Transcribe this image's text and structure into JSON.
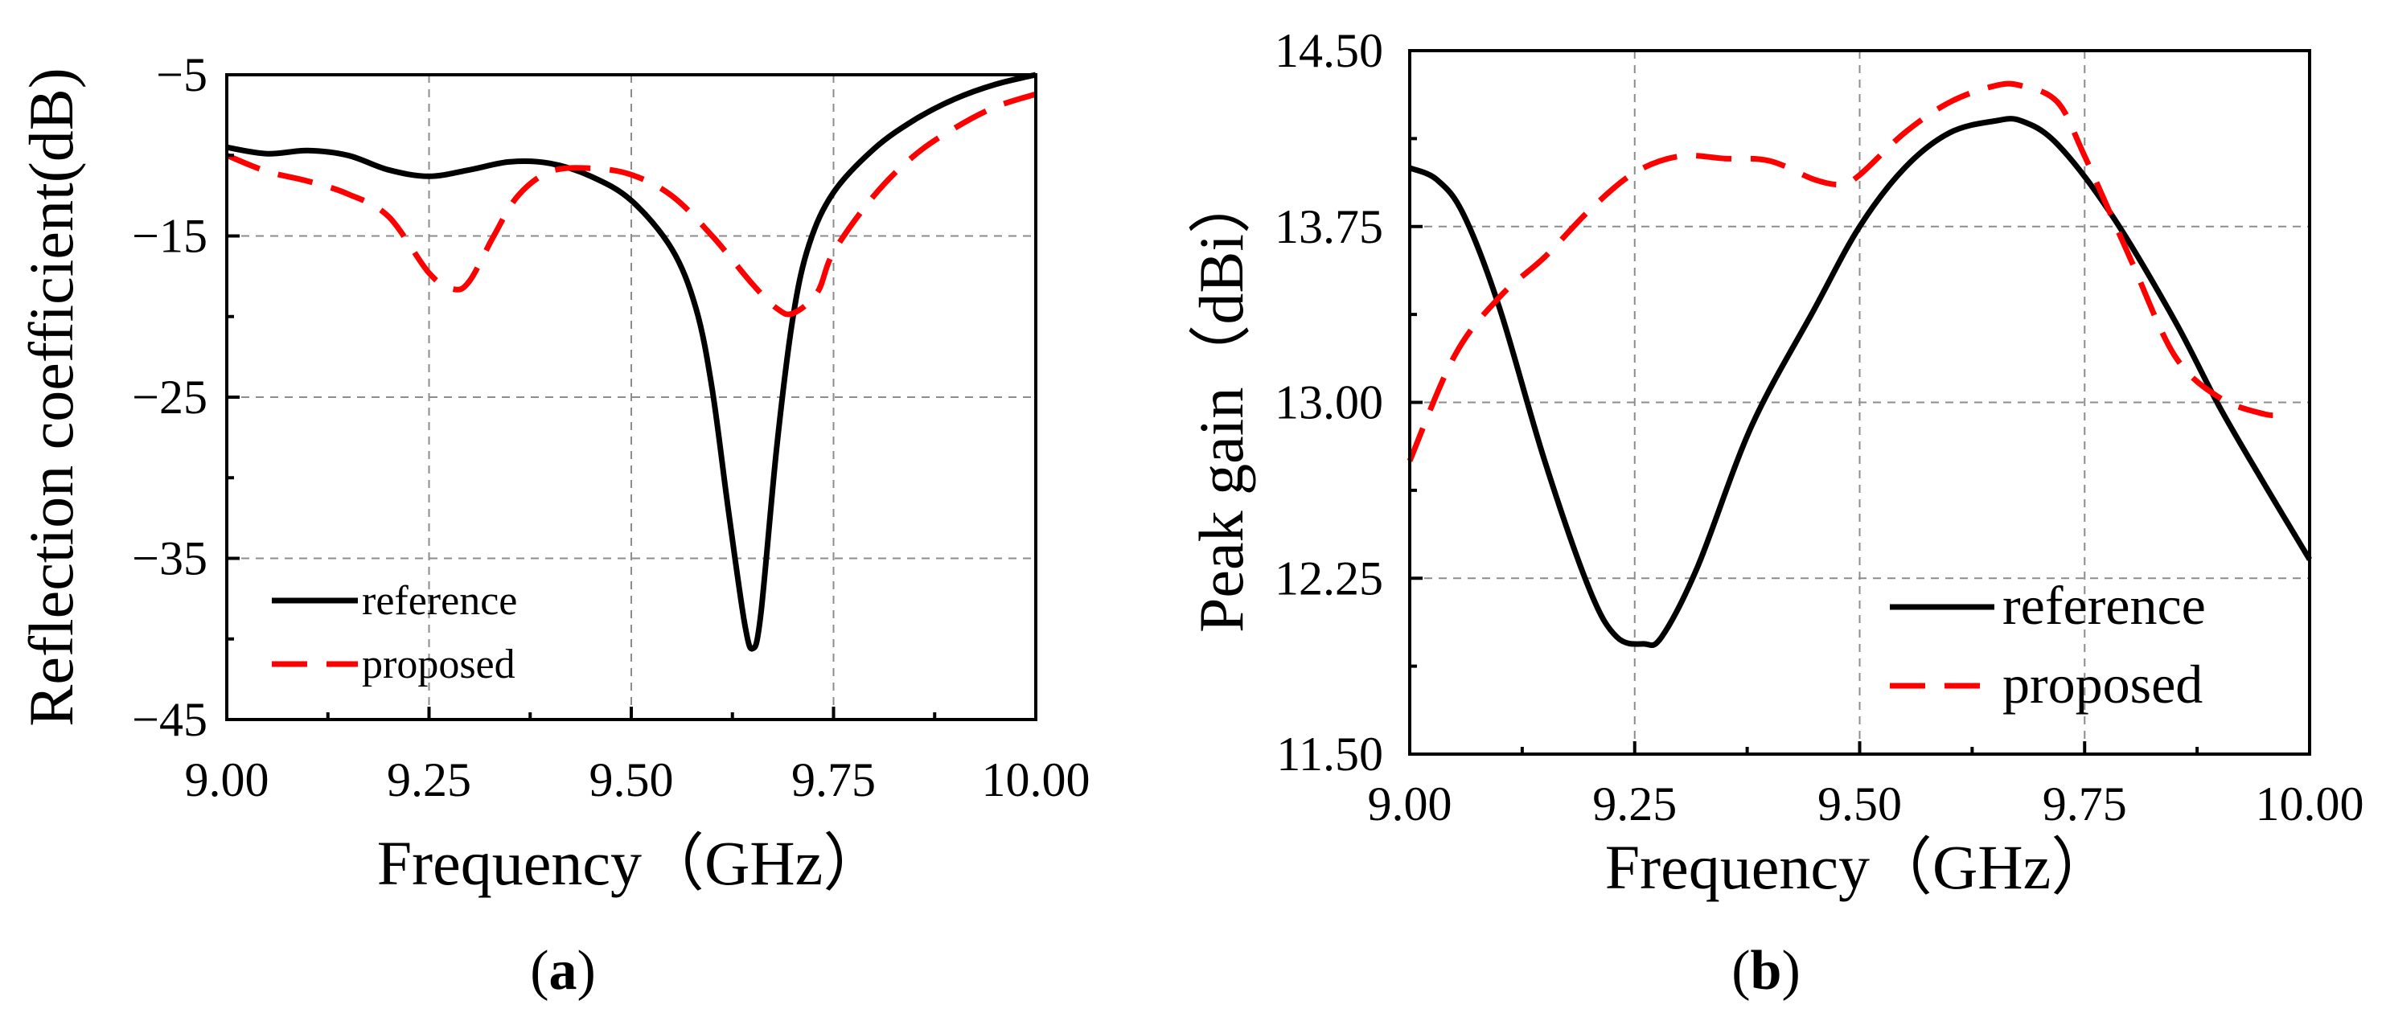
{
  "colors": {
    "reference": "#000000",
    "proposed": "#ff0000",
    "grid": "#8c8c8c"
  },
  "chart_data": [
    {
      "id": "a",
      "type": "line",
      "panel_label": "a",
      "xlabel": "Frequency（GHz）",
      "ylabel": "Reflection coefficient(dB)",
      "xlim": [
        9.0,
        10.0
      ],
      "ylim": [
        -45,
        -5
      ],
      "xticks": [
        9.0,
        9.25,
        9.5,
        9.75,
        10.0
      ],
      "xtick_labels": [
        "9.00",
        "9.25",
        "9.50",
        "9.75",
        "10.00"
      ],
      "yticks": [
        -45,
        -35,
        -25,
        -15,
        -5
      ],
      "ytick_labels": [
        "−45",
        "−35",
        "−25",
        "−15",
        "−5"
      ],
      "grid": true,
      "legend_position": "bottom-left",
      "series": [
        {
          "name": "reference",
          "style": "solid",
          "x": [
            9.0,
            9.05,
            9.1,
            9.15,
            9.2,
            9.25,
            9.3,
            9.35,
            9.4,
            9.45,
            9.5,
            9.55,
            9.58,
            9.6,
            9.62,
            9.64,
            9.65,
            9.66,
            9.68,
            9.7,
            9.72,
            9.75,
            9.8,
            9.85,
            9.9,
            9.95,
            10.0
          ],
          "y": [
            -9.5,
            -9.9,
            -9.7,
            -10.0,
            -10.9,
            -11.3,
            -10.9,
            -10.4,
            -10.5,
            -11.3,
            -12.8,
            -15.8,
            -19.5,
            -24.5,
            -32.0,
            -39.0,
            -40.6,
            -38.5,
            -28.0,
            -20.0,
            -15.5,
            -12.3,
            -9.6,
            -7.8,
            -6.5,
            -5.6,
            -5.0
          ]
        },
        {
          "name": "proposed",
          "style": "dashed",
          "x": [
            9.0,
            9.05,
            9.1,
            9.15,
            9.2,
            9.25,
            9.28,
            9.3,
            9.33,
            9.36,
            9.4,
            9.45,
            9.5,
            9.55,
            9.6,
            9.65,
            9.68,
            9.7,
            9.73,
            9.75,
            9.8,
            9.85,
            9.9,
            9.95,
            10.0
          ],
          "y": [
            -10.0,
            -11.0,
            -11.6,
            -12.4,
            -13.8,
            -17.3,
            -18.3,
            -17.8,
            -15.0,
            -12.5,
            -11.0,
            -10.8,
            -11.2,
            -12.5,
            -15.0,
            -18.0,
            -19.5,
            -19.8,
            -18.5,
            -16.0,
            -12.5,
            -10.0,
            -8.3,
            -7.0,
            -6.2
          ]
        }
      ]
    },
    {
      "id": "b",
      "type": "line",
      "panel_label": "b",
      "xlabel": "Frequency（GHz）",
      "ylabel": "Peak gain（dBi）",
      "xlim": [
        9.0,
        10.0
      ],
      "ylim": [
        11.5,
        14.5
      ],
      "xticks": [
        9.0,
        9.25,
        9.5,
        9.75,
        10.0
      ],
      "xtick_labels": [
        "9.00",
        "9.25",
        "9.50",
        "9.75",
        "10.00"
      ],
      "yticks": [
        11.5,
        12.25,
        13.0,
        13.75,
        14.5
      ],
      "ytick_labels": [
        "11.50",
        "12.25",
        "13.00",
        "13.75",
        "14.50"
      ],
      "grid": true,
      "legend_position": "bottom-right",
      "series": [
        {
          "name": "reference",
          "style": "solid",
          "x": [
            9.0,
            9.03,
            9.06,
            9.1,
            9.15,
            9.2,
            9.23,
            9.26,
            9.28,
            9.32,
            9.38,
            9.45,
            9.5,
            9.55,
            9.6,
            9.65,
            9.68,
            9.72,
            9.78,
            9.85,
            9.9,
            9.95,
            10.0
          ],
          "y": [
            14.0,
            13.95,
            13.8,
            13.4,
            12.75,
            12.2,
            12.0,
            11.97,
            12.0,
            12.3,
            12.9,
            13.4,
            13.75,
            14.0,
            14.15,
            14.2,
            14.2,
            14.1,
            13.8,
            13.35,
            12.98,
            12.65,
            12.33
          ]
        },
        {
          "name": "proposed",
          "style": "dashed",
          "x": [
            9.0,
            9.05,
            9.1,
            9.15,
            9.2,
            9.25,
            9.3,
            9.35,
            9.4,
            9.45,
            9.48,
            9.5,
            9.55,
            9.6,
            9.65,
            9.68,
            9.72,
            9.75,
            9.8,
            9.85,
            9.9,
            9.95,
            9.97
          ],
          "y": [
            12.75,
            13.2,
            13.45,
            13.62,
            13.82,
            13.98,
            14.05,
            14.04,
            14.03,
            13.95,
            13.93,
            13.97,
            14.15,
            14.28,
            14.35,
            14.35,
            14.28,
            14.05,
            13.62,
            13.2,
            13.02,
            12.95,
            12.95
          ]
        }
      ]
    }
  ]
}
